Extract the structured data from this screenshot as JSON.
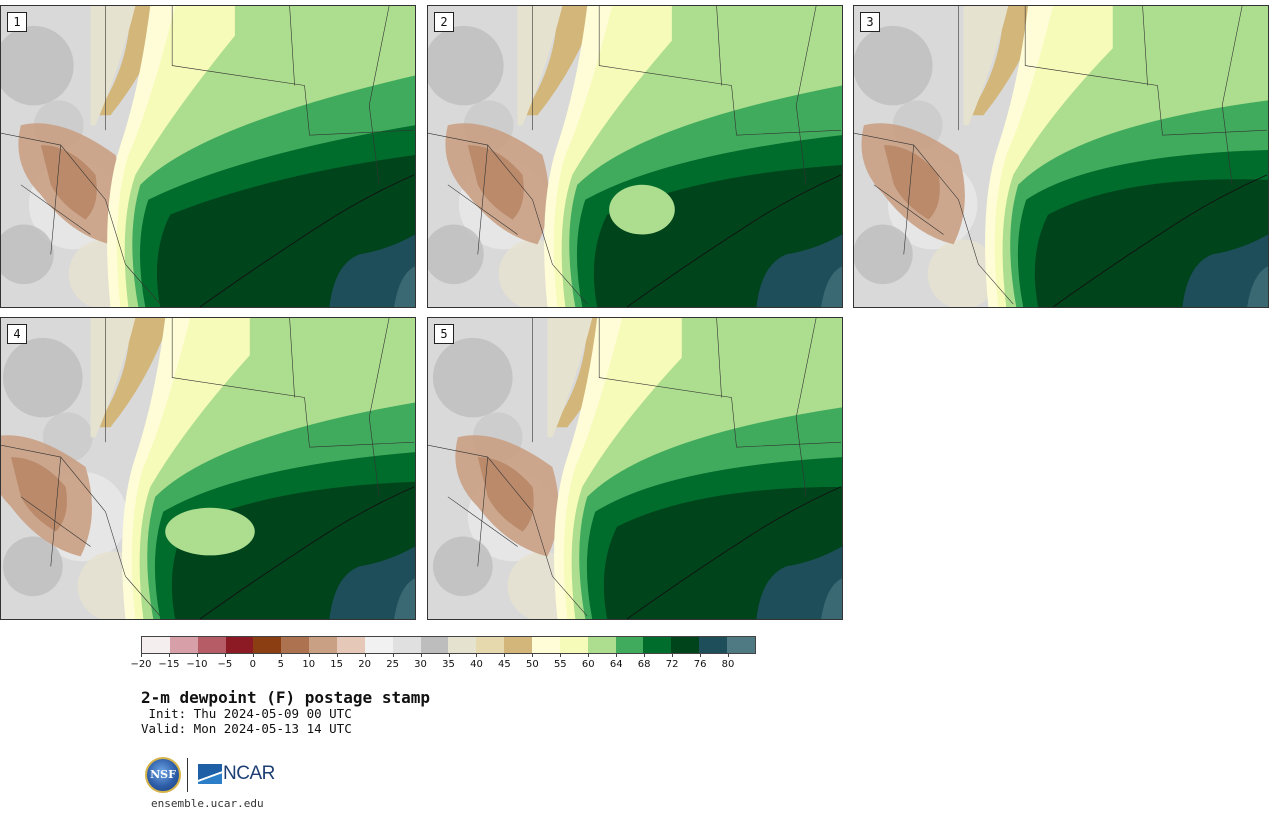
{
  "title": "2-m dewpoint (F) postage stamp",
  "init": " Init: Thu 2024-05-09 00 UTC",
  "valid": "Valid: Mon 2024-05-13 14 UTC",
  "website": "ensemble.ucar.edu",
  "logos": {
    "nsf": "NSF",
    "ncar": "NCAR"
  },
  "panels": [
    {
      "number": "1",
      "variant": 1
    },
    {
      "number": "2",
      "variant": 2
    },
    {
      "number": "3",
      "variant": 3
    },
    {
      "number": "4",
      "variant": 4
    },
    {
      "number": "5",
      "variant": 5
    }
  ],
  "colorbar": {
    "colors": [
      "#f5eeee",
      "#d7a0a8",
      "#b55c66",
      "#8b1a24",
      "#8a3e12",
      "#ad7350",
      "#c9a083",
      "#e6c8b8",
      "#f1f1f1",
      "#e0e0e0",
      "#bdbdbd",
      "#e6e2d0",
      "#e6d9ae",
      "#d2b67a",
      "#fefdd8",
      "#f7fbb9",
      "#addd8e",
      "#41ab5d",
      "#006d2c",
      "#00441b",
      "#1d4e5a",
      "#4f7a84"
    ],
    "ticks": [
      "−20",
      "−15",
      "−10",
      "−5",
      "0",
      "5",
      "10",
      "15",
      "20",
      "25",
      "30",
      "35",
      "40",
      "45",
      "50",
      "55",
      "60",
      "64",
      "68",
      "72",
      "76",
      "80"
    ]
  }
}
